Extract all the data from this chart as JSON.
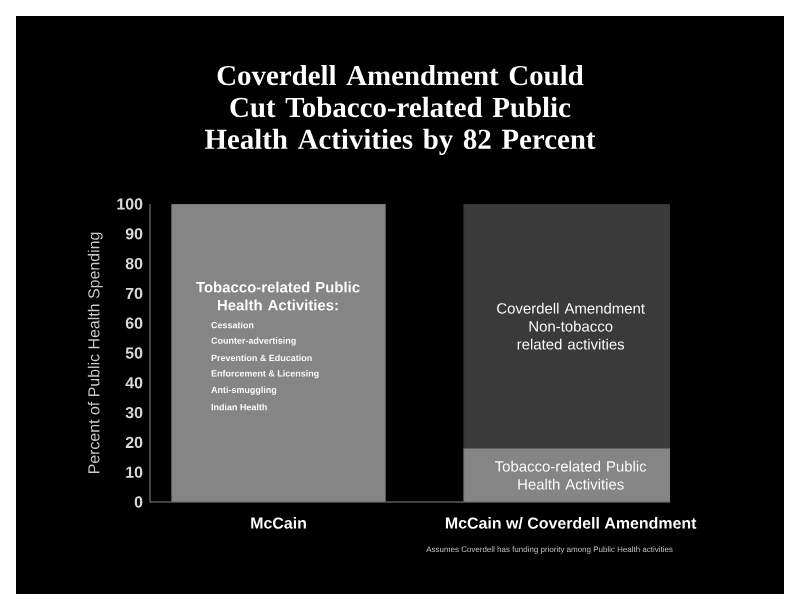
{
  "chart_data": {
    "type": "bar",
    "stacked": true,
    "title": "Coverdell Amendment  Could Cut Tobacco-related Public Health Activities by 82 Percent",
    "ylabel": "Percent of Public Health Spending",
    "categories": [
      "McCain",
      "McCain w/ Coverdell Amendment"
    ],
    "series": [
      {
        "name": "Tobacco-related Public Health Activities",
        "color": "#858585",
        "values": [
          100,
          18
        ]
      },
      {
        "name": "Coverdell Amendment Non-tobacco related activities",
        "color": "#3a3a3a",
        "values": [
          0,
          82
        ]
      }
    ],
    "ylim": [
      0,
      100
    ],
    "yticks": [
      0,
      10,
      20,
      30,
      40,
      50,
      60,
      70,
      80,
      90,
      100
    ],
    "grid": false,
    "legend": false,
    "annotations": [
      "Tobacco-related Public Health Activities:",
      "Cessation",
      "Counter-advertising",
      "Prevention & Education",
      "Enforcement & Licensing",
      "Anti-smuggling",
      "Indian Health",
      "Assumes Coverdell has funding priority among Public Health activities"
    ]
  }
}
